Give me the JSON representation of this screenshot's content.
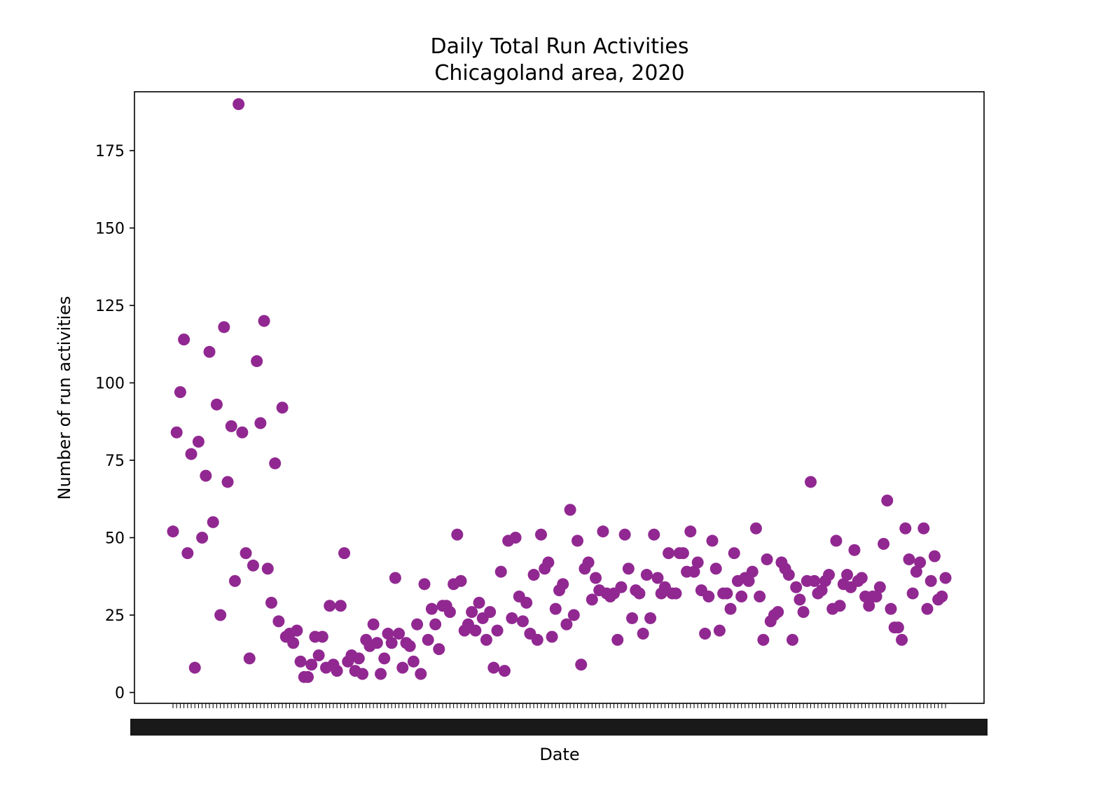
{
  "chart_data": {
    "type": "scatter",
    "title": "Daily Total Run Activities",
    "subtitle": "Chicagoland area, 2020",
    "xlabel": "Date",
    "ylabel": "Number of run activities",
    "ylim": [
      -3.5,
      194
    ],
    "yticks": [
      0,
      25,
      50,
      75,
      100,
      125,
      150,
      175
    ],
    "grid": false,
    "marker_color": "#912891",
    "x_tick_labels_note": "x tick labels are dense overlapping date strings and are not individually legible",
    "series": [
      {
        "values": [
          52,
          84,
          97,
          114,
          45,
          77,
          8,
          81,
          50,
          70,
          110,
          55,
          93,
          25,
          118,
          68,
          86,
          36,
          190,
          84,
          45,
          11,
          41,
          107,
          87,
          120,
          40,
          29,
          74,
          23,
          92,
          18,
          19,
          16,
          20,
          10,
          5,
          5,
          9,
          18,
          12,
          18,
          8,
          28,
          9,
          7,
          28,
          45,
          10,
          12,
          7,
          11,
          6,
          17,
          15,
          22,
          16,
          6,
          11,
          19,
          16,
          37,
          19,
          8,
          16,
          15,
          10,
          22,
          6,
          35,
          17,
          27,
          22,
          14,
          28,
          28,
          26,
          35,
          51,
          36,
          20,
          22,
          26,
          20,
          29,
          24,
          17,
          26,
          8,
          20,
          39,
          7,
          49,
          24,
          50,
          31,
          23,
          29,
          19,
          38,
          17,
          51,
          40,
          42,
          18,
          27,
          33,
          35,
          22,
          59,
          25,
          49,
          9,
          40,
          42,
          30,
          37,
          33,
          52,
          32,
          31,
          32,
          17,
          34,
          51,
          40,
          24,
          33,
          32,
          19,
          38,
          24,
          51,
          37,
          32,
          34,
          45,
          32,
          32,
          45,
          45,
          39,
          52,
          39,
          42,
          33,
          19,
          31,
          49,
          40,
          20,
          32,
          32,
          27,
          45,
          36,
          31,
          37,
          36,
          39,
          53,
          31,
          17,
          43,
          23,
          25,
          26,
          42,
          40,
          38,
          17,
          34,
          30,
          26,
          36,
          68,
          36,
          32,
          33,
          36,
          38,
          27,
          49,
          28,
          35,
          38,
          34,
          46,
          36,
          37,
          31,
          28,
          31,
          31,
          34,
          48,
          62,
          27,
          21,
          21,
          17,
          53,
          43,
          32,
          39,
          42,
          53,
          27,
          36,
          44,
          30,
          31,
          37
        ]
      }
    ]
  }
}
